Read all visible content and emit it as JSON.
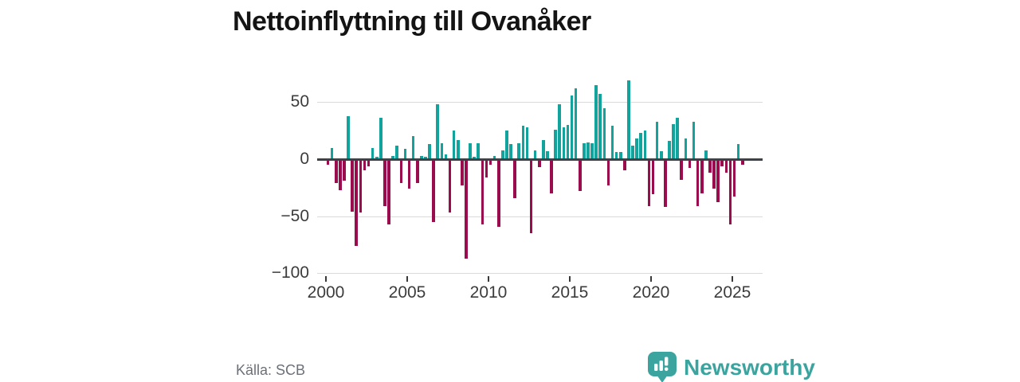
{
  "header": {
    "title": "Nettoinflyttning till Ovanåker"
  },
  "footer": {
    "source": "Källa: SCB",
    "brand": "Newsworthy",
    "brand_color": "#3ca49f"
  },
  "chart_data": {
    "type": "bar",
    "title": "Nettoinflyttning till Ovanåker",
    "x_unit": "quarter",
    "start_period": "2000Q1",
    "end_period": "2025Q3",
    "values": [
      -5,
      10,
      -21,
      -27,
      -19,
      38,
      -46,
      -76,
      -47,
      -10,
      -6,
      10,
      2,
      36,
      -41,
      -57,
      3,
      12,
      -21,
      9,
      -26,
      20,
      -21,
      3,
      2,
      13,
      -55,
      48,
      14,
      4,
      -47,
      25,
      17,
      -23,
      -87,
      14,
      2,
      14,
      -57,
      -16,
      -5,
      3,
      -59,
      8,
      25,
      13,
      -34,
      14,
      29,
      28,
      -65,
      8,
      -7,
      17,
      7,
      -30,
      26,
      48,
      28,
      30,
      56,
      62,
      -28,
      14,
      15,
      14,
      65,
      57,
      45,
      -23,
      29,
      6,
      6,
      -10,
      69,
      12,
      18,
      23,
      25,
      -41,
      -31,
      33,
      7,
      -42,
      16,
      31,
      36,
      -18,
      18,
      -8,
      33,
      -41,
      -30,
      8,
      -12,
      -26,
      -38,
      -6,
      -12,
      -57,
      -33,
      13,
      -5
    ],
    "yticks": [
      50,
      0,
      -50,
      -100
    ],
    "xticks": [
      2000,
      2005,
      2010,
      2015,
      2020,
      2025
    ],
    "ylim": [
      -100,
      75
    ],
    "grid": true,
    "legend": "none",
    "positive_color": "#12a39d",
    "negative_color": "#9b0c4e",
    "zero_line_color": "#3d4248",
    "grid_color": "#dadada"
  }
}
